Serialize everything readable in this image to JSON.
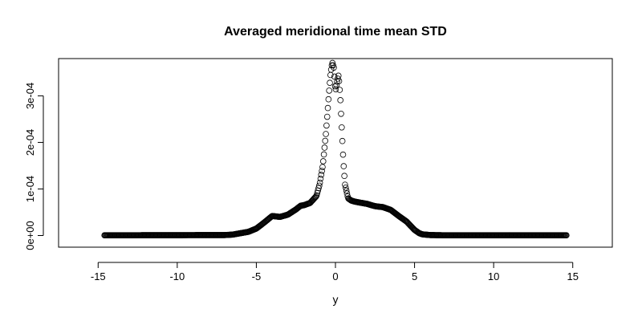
{
  "chart_data": {
    "type": "scatter",
    "title": "Averaged meridional time mean STD",
    "xlabel": "y",
    "ylabel": "",
    "xlim": [
      -17.5,
      17.5
    ],
    "ylim": [
      -2.5e-05,
      0.00038
    ],
    "x_ticks": [
      -15,
      -10,
      -5,
      0,
      5,
      10,
      15
    ],
    "x_tick_labels": [
      "-15",
      "-10",
      "-5",
      "0",
      "5",
      "10",
      "15"
    ],
    "y_ticks": [
      0,
      0.0001,
      0.0002,
      0.0003
    ],
    "y_tick_labels": [
      "0e+00",
      "1e-04",
      "2e-04",
      "3e-04"
    ],
    "grid": false,
    "legend": "none",
    "marker": "open-circle",
    "x_range": [
      -14.6,
      14.6
    ],
    "profile": {
      "x": [
        -14.6,
        -7.0,
        -6.5,
        -6.0,
        -5.5,
        -5.0,
        -4.5,
        -4.0,
        -3.5,
        -3.0,
        -2.5,
        -2.2,
        -2.0,
        -1.6,
        -1.2,
        -1.0,
        -0.8,
        -0.6,
        -0.4,
        -0.3,
        -0.2,
        -0.1,
        0.0,
        0.1,
        0.2,
        0.3,
        0.4,
        0.5,
        0.6,
        0.8,
        1.0,
        1.2,
        1.5,
        2.0,
        2.5,
        3.0,
        3.5,
        4.0,
        4.5,
        5.0,
        5.3,
        5.5,
        6.0,
        7.0,
        14.6
      ],
      "y": [
        5e-07,
        1e-06,
        2e-06,
        5e-06,
        8e-06,
        1.5e-05,
        2.8e-05,
        4.2e-05,
        4e-05,
        4.5e-05,
        5.6e-05,
        6.4e-05,
        6.5e-05,
        7e-05,
        8.5e-05,
        0.00011,
        0.00015,
        0.00022,
        0.00031,
        0.00035,
        0.000372,
        0.00036,
        0.00031,
        0.00033,
        0.000345,
        0.0003,
        0.00023,
        0.00016,
        0.00011,
        8e-05,
        7.5e-05,
        7.3e-05,
        7.1e-05,
        6.8e-05,
        6.3e-05,
        6.1e-05,
        5.5e-05,
        4.2e-05,
        3e-05,
        1.2e-05,
        5e-06,
        2.5e-06,
        1e-06,
        5e-07,
        5e-07
      ]
    }
  }
}
